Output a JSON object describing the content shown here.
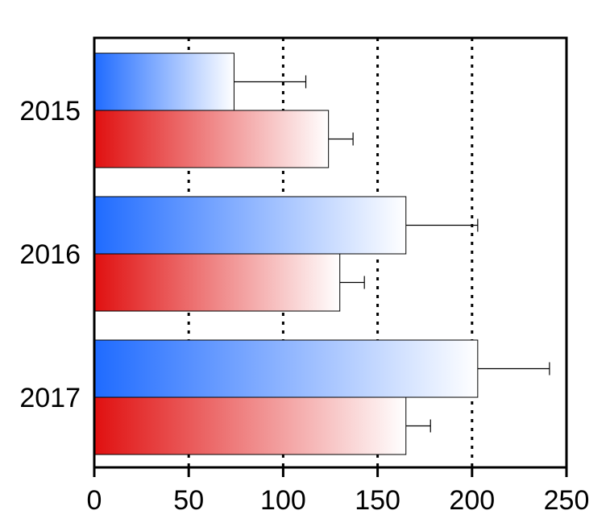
{
  "chart_data": {
    "type": "bar",
    "orientation": "horizontal",
    "categories": [
      "2015",
      "2016",
      "2017"
    ],
    "series": [
      {
        "values": [
          74,
          165,
          203
        ],
        "errors": [
          38,
          38,
          38
        ],
        "color_start": "#1f6bff",
        "color_end": "#ffffff"
      },
      {
        "values": [
          124,
          130,
          165
        ],
        "errors": [
          13,
          13,
          13
        ],
        "color_start": "#e01010",
        "color_end": "#ffffff"
      }
    ],
    "x_ticks": [
      "0",
      "50",
      "100",
      "150",
      "200",
      "250"
    ],
    "xlim": [
      0,
      250
    ],
    "grid": "vertical dotted at 50, 100, 150, 200",
    "legend": "none",
    "title": "",
    "xlabel": "",
    "ylabel": ""
  }
}
